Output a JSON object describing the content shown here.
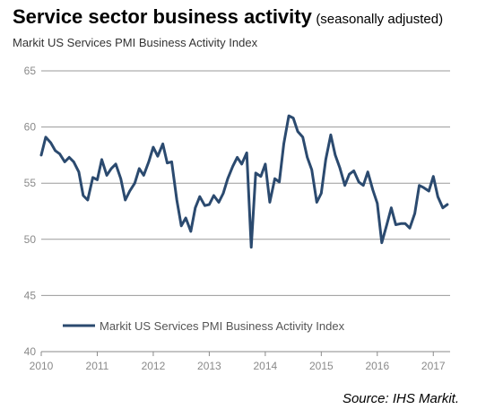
{
  "header": {
    "title": "Service sector business activity",
    "title_note": "(seasonally adjusted)",
    "subtitle": "Markit US Services PMI Business Activity Index"
  },
  "source": "Source: IHS Markit.",
  "chart_data": {
    "type": "line",
    "title": "Markit US Services PMI Business Activity Index",
    "ylim": [
      40,
      65
    ],
    "yticks": [
      40,
      45,
      50,
      55,
      60,
      65
    ],
    "xlim": [
      2010.0,
      2017.3
    ],
    "xticks": [
      2010,
      2011,
      2012,
      2013,
      2014,
      2015,
      2016,
      2017
    ],
    "x_tick_labels": [
      "2010",
      "2011",
      "2012",
      "2013",
      "2014",
      "2015",
      "2016",
      "2017"
    ],
    "grid": true,
    "legend_position": "bottom-left inside",
    "color": "#2b4a6f",
    "series": [
      {
        "name": "Markit US Services PMI Business Activity Index",
        "x": [
          2010.0,
          2010.08,
          2010.17,
          2010.25,
          2010.33,
          2010.42,
          2010.5,
          2010.58,
          2010.67,
          2010.75,
          2010.83,
          2010.92,
          2011.0,
          2011.08,
          2011.17,
          2011.25,
          2011.33,
          2011.42,
          2011.5,
          2011.58,
          2011.67,
          2011.75,
          2011.83,
          2011.92,
          2012.0,
          2012.08,
          2012.17,
          2012.25,
          2012.33,
          2012.42,
          2012.5,
          2012.58,
          2012.67,
          2012.75,
          2012.83,
          2012.92,
          2013.0,
          2013.08,
          2013.17,
          2013.25,
          2013.33,
          2013.42,
          2013.5,
          2013.58,
          2013.67,
          2013.75,
          2013.83,
          2013.92,
          2014.0,
          2014.08,
          2014.17,
          2014.25,
          2014.33,
          2014.42,
          2014.5,
          2014.58,
          2014.67,
          2014.75,
          2014.83,
          2014.92,
          2015.0,
          2015.08,
          2015.17,
          2015.25,
          2015.33,
          2015.42,
          2015.5,
          2015.58,
          2015.67,
          2015.75,
          2015.83,
          2015.92,
          2016.0,
          2016.08,
          2016.17,
          2016.25,
          2016.33,
          2016.42,
          2016.5,
          2016.58,
          2016.67,
          2016.75,
          2016.83,
          2016.92,
          2017.0,
          2017.08,
          2017.17,
          2017.25
        ],
        "values": [
          57.5,
          59.1,
          58.6,
          57.9,
          57.6,
          56.9,
          57.3,
          56.9,
          56.0,
          53.9,
          53.5,
          55.5,
          55.3,
          57.1,
          55.7,
          56.3,
          56.7,
          55.4,
          53.5,
          54.3,
          55.0,
          56.3,
          55.7,
          56.9,
          58.2,
          57.4,
          58.5,
          56.8,
          56.9,
          53.5,
          51.2,
          51.9,
          50.7,
          52.8,
          53.8,
          53.0,
          53.1,
          53.9,
          53.3,
          54.1,
          55.4,
          56.5,
          57.3,
          56.7,
          57.7,
          49.3,
          55.9,
          55.6,
          56.7,
          53.3,
          55.4,
          55.1,
          58.5,
          61.0,
          60.8,
          59.6,
          59.1,
          57.3,
          56.2,
          53.3,
          54.1,
          57.1,
          59.3,
          57.5,
          56.4,
          54.8,
          55.8,
          56.1,
          55.1,
          54.8,
          56.0,
          54.4,
          53.2,
          49.7,
          51.3,
          52.8,
          51.3,
          51.4,
          51.4,
          51.0,
          52.3,
          54.8,
          54.6,
          54.3,
          55.6,
          53.8,
          52.8,
          53.1
        ]
      }
    ]
  }
}
